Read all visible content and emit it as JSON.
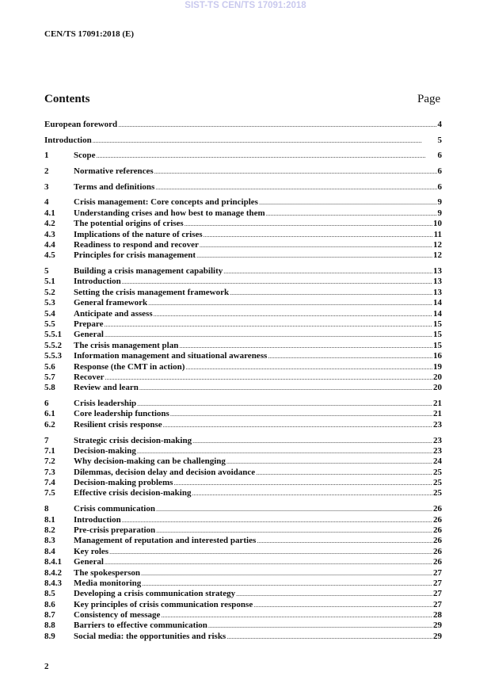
{
  "watermark": "SIST-TS CEN/TS 17091:2018",
  "header": {
    "doc_id": "CEN/TS 17091:2018 (E)"
  },
  "contents": {
    "title": "Contents",
    "page_label": "Page",
    "groups": [
      [
        {
          "num": "",
          "title": "European foreword",
          "page": "4"
        }
      ],
      [
        {
          "num": "",
          "title": "Introduction",
          "page": "5"
        }
      ],
      [
        {
          "num": "1",
          "title": "Scope",
          "page": "6"
        }
      ],
      [
        {
          "num": "2",
          "title": "Normative references",
          "page": "6"
        }
      ],
      [
        {
          "num": "3",
          "title": "Terms and definitions",
          "page": "6"
        }
      ],
      [
        {
          "num": "4",
          "title": "Crisis management: Core concepts and principles",
          "page": "9"
        },
        {
          "num": "4.1",
          "title": "Understanding crises and how best to manage them",
          "page": "9"
        },
        {
          "num": "4.2",
          "title": "The potential origins of crises",
          "page": "10"
        },
        {
          "num": "4.3",
          "title": "Implications of the nature of crises",
          "page": "11"
        },
        {
          "num": "4.4",
          "title": "Readiness to respond and recover",
          "page": "12"
        },
        {
          "num": "4.5",
          "title": "Principles for crisis management",
          "page": "12"
        }
      ],
      [
        {
          "num": "5",
          "title": "Building a crisis management capability",
          "page": "13"
        },
        {
          "num": "5.1",
          "title": "Introduction",
          "page": "13"
        },
        {
          "num": "5.2",
          "title": "Setting the crisis management framework",
          "page": "13"
        },
        {
          "num": "5.3",
          "title": "General framework",
          "page": "14"
        },
        {
          "num": "5.4",
          "title": "Anticipate and assess",
          "page": "14"
        },
        {
          "num": "5.5",
          "title": "Prepare",
          "page": "15"
        },
        {
          "num": "5.5.1",
          "title": "General",
          "page": "15"
        },
        {
          "num": "5.5.2",
          "title": "The crisis management plan",
          "page": "15"
        },
        {
          "num": "5.5.3",
          "title": "Information management and situational awareness",
          "page": "16"
        },
        {
          "num": "5.6",
          "title": "Response (the CMT in action)",
          "page": "19"
        },
        {
          "num": "5.7",
          "title": "Recover",
          "page": "20"
        },
        {
          "num": "5.8",
          "title": "Review and learn",
          "page": "20"
        }
      ],
      [
        {
          "num": "6",
          "title": "Crisis leadership",
          "page": "21"
        },
        {
          "num": "6.1",
          "title": "Core leadership functions",
          "page": "21"
        },
        {
          "num": "6.2",
          "title": "Resilient crisis response",
          "page": "23"
        }
      ],
      [
        {
          "num": "7",
          "title": "Strategic crisis decision-making",
          "page": "23"
        },
        {
          "num": "7.1",
          "title": "Decision-making",
          "page": "23"
        },
        {
          "num": "7.2",
          "title": "Why decision-making can be challenging",
          "page": "24"
        },
        {
          "num": "7.3",
          "title": "Dilemmas, decision delay and decision avoidance",
          "page": "25"
        },
        {
          "num": "7.4",
          "title": "Decision-making problems",
          "page": "25"
        },
        {
          "num": "7.5",
          "title": "Effective crisis decision-making",
          "page": "25"
        }
      ],
      [
        {
          "num": "8",
          "title": "Crisis communication",
          "page": "26"
        },
        {
          "num": "8.1",
          "title": "Introduction",
          "page": "26"
        },
        {
          "num": "8.2",
          "title": "Pre-crisis preparation",
          "page": "26"
        },
        {
          "num": "8.3",
          "title": "Management of reputation and interested parties",
          "page": "26"
        },
        {
          "num": "8.4",
          "title": "Key roles",
          "page": "26"
        },
        {
          "num": "8.4.1",
          "title": "General",
          "page": "26"
        },
        {
          "num": "8.4.2",
          "title": "The spokesperson",
          "page": "27"
        },
        {
          "num": "8.4.3",
          "title": "Media monitoring",
          "page": "27"
        },
        {
          "num": "8.5",
          "title": "Developing a crisis communication strategy",
          "page": "27"
        },
        {
          "num": "8.6",
          "title": "Key principles of crisis communication response",
          "page": "27"
        },
        {
          "num": "8.7",
          "title": "Consistency of message",
          "page": "28"
        },
        {
          "num": "8.8",
          "title": "Barriers to effective communication",
          "page": "29"
        },
        {
          "num": "8.9",
          "title": "Social media: the opportunities and risks",
          "page": "29"
        }
      ]
    ]
  },
  "footer": {
    "page_number": "2"
  }
}
